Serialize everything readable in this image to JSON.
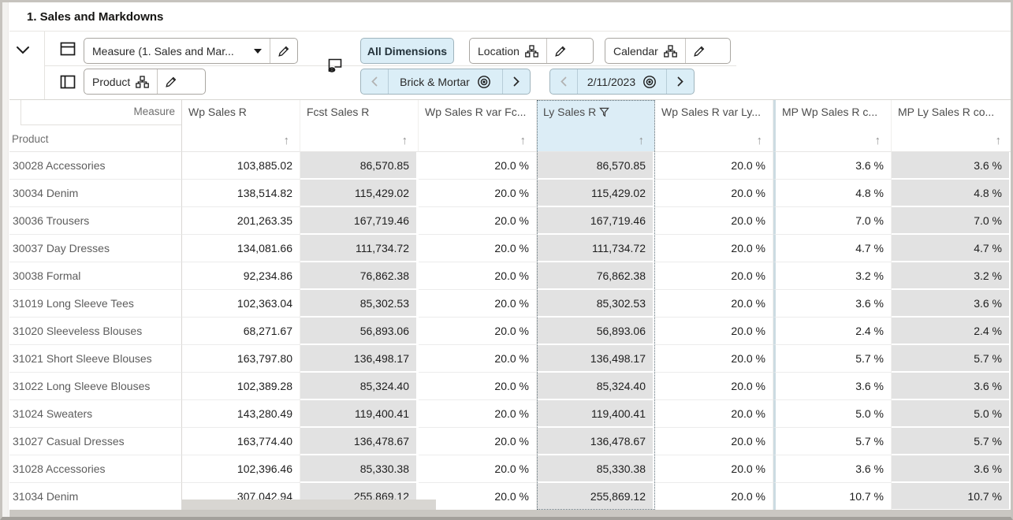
{
  "window": {
    "title": "1. Sales and Markdowns"
  },
  "toolbar": {
    "measure_dropdown_label": "Measure (1. Sales and Mar...",
    "product_tile_label": "Product",
    "all_dimensions_label": "All Dimensions",
    "location_tile_label": "Location",
    "calendar_tile_label": "Calendar",
    "location_value": "Brick & Mortar",
    "calendar_value": "2/11/2023"
  },
  "colors": {
    "chip_blue": "#dbeef7",
    "selected_header_blue": "#dcedf6",
    "shaded_column_gray": "#e2e2e2",
    "frame_gray": "#c6c3be"
  },
  "grid": {
    "corner": {
      "column_dimension": "Measure",
      "row_dimension": "Product"
    },
    "sort_arrow_glyph": "↑",
    "columns": [
      {
        "label": "Wp Sales R",
        "shaded": false,
        "selected": false,
        "filtered": false
      },
      {
        "label": "Fcst Sales R",
        "shaded": true,
        "selected": false,
        "filtered": false
      },
      {
        "label": "Wp Sales R var Fc...",
        "shaded": false,
        "selected": false,
        "filtered": false
      },
      {
        "label": "Ly Sales R",
        "shaded": true,
        "selected": true,
        "filtered": true
      },
      {
        "label": "Wp Sales R var Ly...",
        "shaded": false,
        "selected": false,
        "filtered": false
      },
      {
        "label": "MP Wp Sales R c...",
        "shaded": false,
        "selected": false,
        "filtered": false
      },
      {
        "label": "MP Ly Sales R co...",
        "shaded": true,
        "selected": false,
        "filtered": false
      }
    ],
    "rows": [
      {
        "label": "30028 Accessories",
        "values": [
          "103,885.02",
          "86,570.85",
          "20.0 %",
          "86,570.85",
          "20.0 %",
          "3.6 %",
          "3.6 %"
        ]
      },
      {
        "label": "30034 Denim",
        "values": [
          "138,514.82",
          "115,429.02",
          "20.0 %",
          "115,429.02",
          "20.0 %",
          "4.8 %",
          "4.8 %"
        ]
      },
      {
        "label": "30036 Trousers",
        "values": [
          "201,263.35",
          "167,719.46",
          "20.0 %",
          "167,719.46",
          "20.0 %",
          "7.0 %",
          "7.0 %"
        ]
      },
      {
        "label": "30037 Day Dresses",
        "values": [
          "134,081.66",
          "111,734.72",
          "20.0 %",
          "111,734.72",
          "20.0 %",
          "4.7 %",
          "4.7 %"
        ]
      },
      {
        "label": "30038 Formal",
        "values": [
          "92,234.86",
          "76,862.38",
          "20.0 %",
          "76,862.38",
          "20.0 %",
          "3.2 %",
          "3.2 %"
        ]
      },
      {
        "label": "31019 Long Sleeve Tees",
        "values": [
          "102,363.04",
          "85,302.53",
          "20.0 %",
          "85,302.53",
          "20.0 %",
          "3.6 %",
          "3.6 %"
        ]
      },
      {
        "label": "31020 Sleeveless Blouses",
        "values": [
          "68,271.67",
          "56,893.06",
          "20.0 %",
          "56,893.06",
          "20.0 %",
          "2.4 %",
          "2.4 %"
        ]
      },
      {
        "label": "31021 Short Sleeve Blouses",
        "values": [
          "163,797.80",
          "136,498.17",
          "20.0 %",
          "136,498.17",
          "20.0 %",
          "5.7 %",
          "5.7 %"
        ]
      },
      {
        "label": "31022 Long Sleeve Blouses",
        "values": [
          "102,389.28",
          "85,324.40",
          "20.0 %",
          "85,324.40",
          "20.0 %",
          "3.6 %",
          "3.6 %"
        ]
      },
      {
        "label": "31024 Sweaters",
        "values": [
          "143,280.49",
          "119,400.41",
          "20.0 %",
          "119,400.41",
          "20.0 %",
          "5.0 %",
          "5.0 %"
        ]
      },
      {
        "label": "31027 Casual Dresses",
        "values": [
          "163,774.40",
          "136,478.67",
          "20.0 %",
          "136,478.67",
          "20.0 %",
          "5.7 %",
          "5.7 %"
        ]
      },
      {
        "label": "31028 Accessories",
        "values": [
          "102,396.46",
          "85,330.38",
          "20.0 %",
          "85,330.38",
          "20.0 %",
          "3.6 %",
          "3.6 %"
        ]
      },
      {
        "label": "31034 Denim",
        "values": [
          "307,042.94",
          "255,869.12",
          "20.0 %",
          "255,869.12",
          "20.0 %",
          "10.7 %",
          "10.7 %"
        ]
      }
    ]
  }
}
